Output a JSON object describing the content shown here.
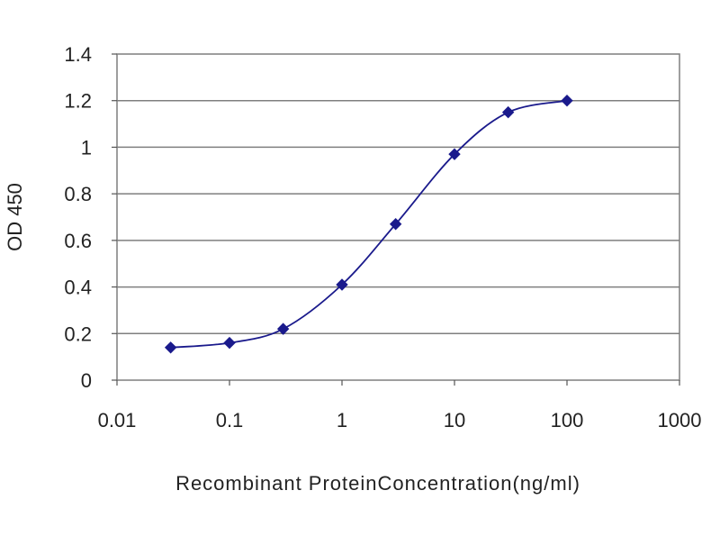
{
  "chart_data": {
    "type": "line",
    "title": "",
    "xlabel": "Recombinant ProteinConcentration(ng/ml)",
    "ylabel": "OD 450",
    "x_scale": "log",
    "xlim": [
      0.01,
      1000
    ],
    "ylim": [
      0,
      1.4
    ],
    "x_ticks": [
      "0.01",
      "0.1",
      "1",
      "10",
      "100",
      "1000"
    ],
    "x_tick_values": [
      0.01,
      0.1,
      1,
      10,
      100,
      1000
    ],
    "y_ticks": [
      "0",
      "0.2",
      "0.4",
      "0.6",
      "0.8",
      "1",
      "1.2",
      "1.4"
    ],
    "y_tick_values": [
      0,
      0.2,
      0.4,
      0.6,
      0.8,
      1,
      1.2,
      1.4
    ],
    "grid": "horizontal",
    "legend": "none",
    "series": [
      {
        "x": [
          0.03,
          0.1,
          0.3,
          1,
          3,
          10,
          30,
          100
        ],
        "y": [
          0.14,
          0.16,
          0.22,
          0.41,
          0.67,
          0.97,
          1.15,
          1.2
        ],
        "color": "#1a1a8c",
        "marker": "diamond"
      }
    ],
    "colors": {
      "gridline": "#7f7f7f",
      "plot_border": "#7f7f7f",
      "line": "#1a1a8c"
    }
  }
}
